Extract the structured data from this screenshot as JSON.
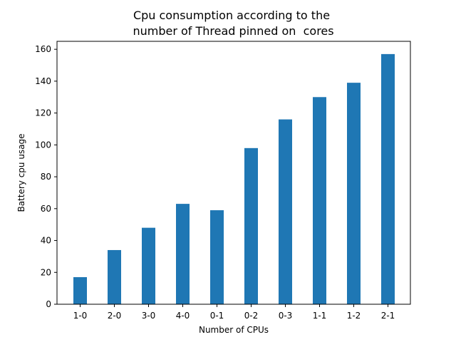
{
  "chart_data": {
    "type": "bar",
    "title_lines": [
      "Cpu consumption according to the",
      " number of Thread pinned on  cores"
    ],
    "xlabel": "Number of CPUs",
    "ylabel": "Battery cpu usage",
    "categories": [
      "1-0",
      "2-0",
      "3-0",
      "4-0",
      "0-1",
      "0-2",
      "0-3",
      "1-1",
      "1-2",
      "2-1"
    ],
    "values": [
      17,
      34,
      48,
      63,
      59,
      98,
      116,
      130,
      139,
      157
    ],
    "ylim": [
      0,
      165
    ],
    "yticks": [
      0,
      20,
      40,
      60,
      80,
      100,
      120,
      140,
      160
    ],
    "bar_color": "#1f77b4",
    "grid": false,
    "legend": "none"
  }
}
